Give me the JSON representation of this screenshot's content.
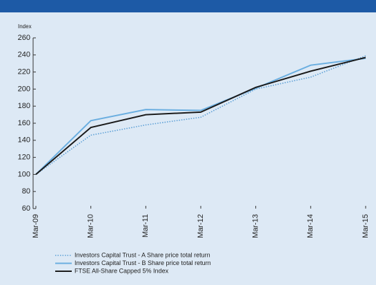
{
  "chart_data": {
    "type": "line",
    "y_label": "Index",
    "categories": [
      "Mar-09",
      "Mar-10",
      "Mar-11",
      "Mar-12",
      "Mar-13",
      "Mar-14",
      "Mar-15"
    ],
    "series": [
      {
        "name": "Investors Capital Trust - A Share price total return",
        "color": "#5b9fd6",
        "dashed": true,
        "values": [
          100,
          146,
          158,
          167,
          200,
          214,
          239
        ]
      },
      {
        "name": "Investors Capital Trust - B Share price total return",
        "color": "#6aaee0",
        "dashed": false,
        "values": [
          100,
          163,
          176,
          175,
          201,
          228,
          236
        ]
      },
      {
        "name": "FTSE All-Share Capped 5% Index",
        "color": "#1a1a1a",
        "dashed": false,
        "values": [
          100,
          155,
          170,
          173,
          202,
          221,
          237
        ]
      }
    ],
    "ylim": [
      60,
      260
    ],
    "yticks": [
      60,
      80,
      100,
      120,
      140,
      160,
      180,
      200,
      220,
      240,
      260
    ]
  }
}
